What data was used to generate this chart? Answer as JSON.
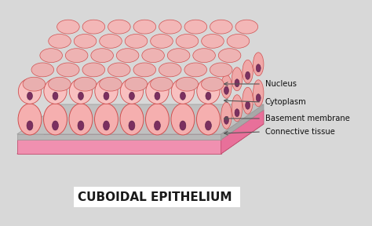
{
  "title": "CUBOIDAL EPITHELIUM",
  "title_fontsize": 11,
  "title_color": "#1a1a1a",
  "bg_color": "#d8d8d8",
  "labels": [
    "Nucleus",
    "Cytoplasm",
    "Basement membrane",
    "Connective tissue"
  ],
  "label_fontsize": 7.2,
  "cell_fill_front": "#f5b0b0",
  "cell_fill_top": "#f9caca",
  "cell_fill_side": "#f0a8a8",
  "cell_edge": "#d05050",
  "nucleus_fill": "#7b3060",
  "nucleus_edge": "#5a2048",
  "basement_fill": "#c0c0c0",
  "basement_edge": "#999999",
  "connective_fill": "#e8709a",
  "connective_fill2": "#f090b0",
  "connective_edge": "#c05070",
  "arrow_color": "#555555",
  "label_color": "#111111",
  "white_box_fill": "#ffffff"
}
